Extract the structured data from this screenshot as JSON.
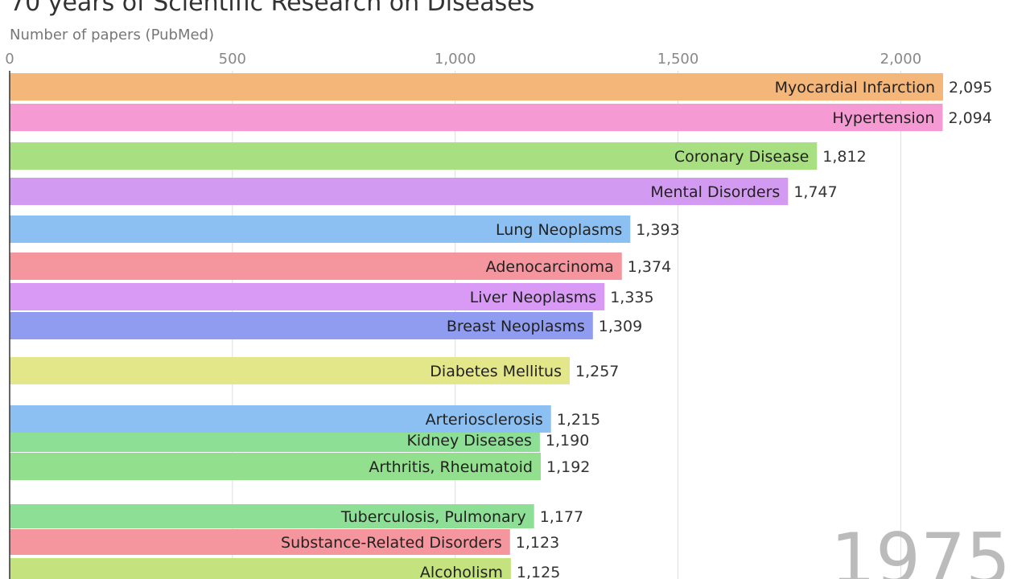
{
  "title": "70 years of Scientific Research on Diseases",
  "year": "1975",
  "colors": {
    "gridline": "#dddddd",
    "axis": "#333333"
  },
  "chart_data": {
    "type": "bar",
    "orientation": "horizontal",
    "xlabel": "Number of papers (PubMed)",
    "xlim": [
      0,
      2100
    ],
    "xticks": [
      0,
      500,
      1000,
      1500,
      2000
    ],
    "xtick_labels": [
      "0",
      "500",
      "1,000",
      "1,500",
      "2,000"
    ],
    "grid": true,
    "bars": [
      {
        "label": "Myocardial Infarction",
        "value": 2095,
        "value_label": "2,095",
        "color": "#f5b67a"
      },
      {
        "label": "Hypertension",
        "value": 2094,
        "value_label": "2,094",
        "color": "#f59ad2"
      },
      {
        "label": "Coronary Disease",
        "value": 1812,
        "value_label": "1,812",
        "color": "#a8df80"
      },
      {
        "label": "Mental Disorders",
        "value": 1747,
        "value_label": "1,747",
        "color": "#d29af0"
      },
      {
        "label": "Lung Neoplasms",
        "value": 1393,
        "value_label": "1,393",
        "color": "#8dc0f2"
      },
      {
        "label": "Adenocarcinoma",
        "value": 1374,
        "value_label": "1,374",
        "color": "#f5969e"
      },
      {
        "label": "Liver Neoplasms",
        "value": 1335,
        "value_label": "1,335",
        "color": "#d89af5"
      },
      {
        "label": "Breast Neoplasms",
        "value": 1309,
        "value_label": "1,309",
        "color": "#8f9cf0"
      },
      {
        "label": "Diabetes Mellitus",
        "value": 1257,
        "value_label": "1,257",
        "color": "#e4e68a"
      },
      {
        "label": "Kidney Diseases",
        "value": 1190,
        "value_label": "1,190",
        "color": "#8edf96"
      },
      {
        "label": "Arteriosclerosis",
        "value": 1215,
        "value_label": "1,215",
        "color": "#8dc0f2"
      },
      {
        "label": "Arthritis, Rheumatoid",
        "value": 1192,
        "value_label": "1,192",
        "color": "#92df8e"
      },
      {
        "label": "Tuberculosis, Pulmonary",
        "value": 1177,
        "value_label": "1,177",
        "color": "#8edf96"
      },
      {
        "label": "Substance-Related Disorders",
        "value": 1123,
        "value_label": "1,123",
        "color": "#f5969e"
      },
      {
        "label": "Alcoholism",
        "value": 1125,
        "value_label": "1,125",
        "color": "#c4e37e"
      }
    ]
  }
}
